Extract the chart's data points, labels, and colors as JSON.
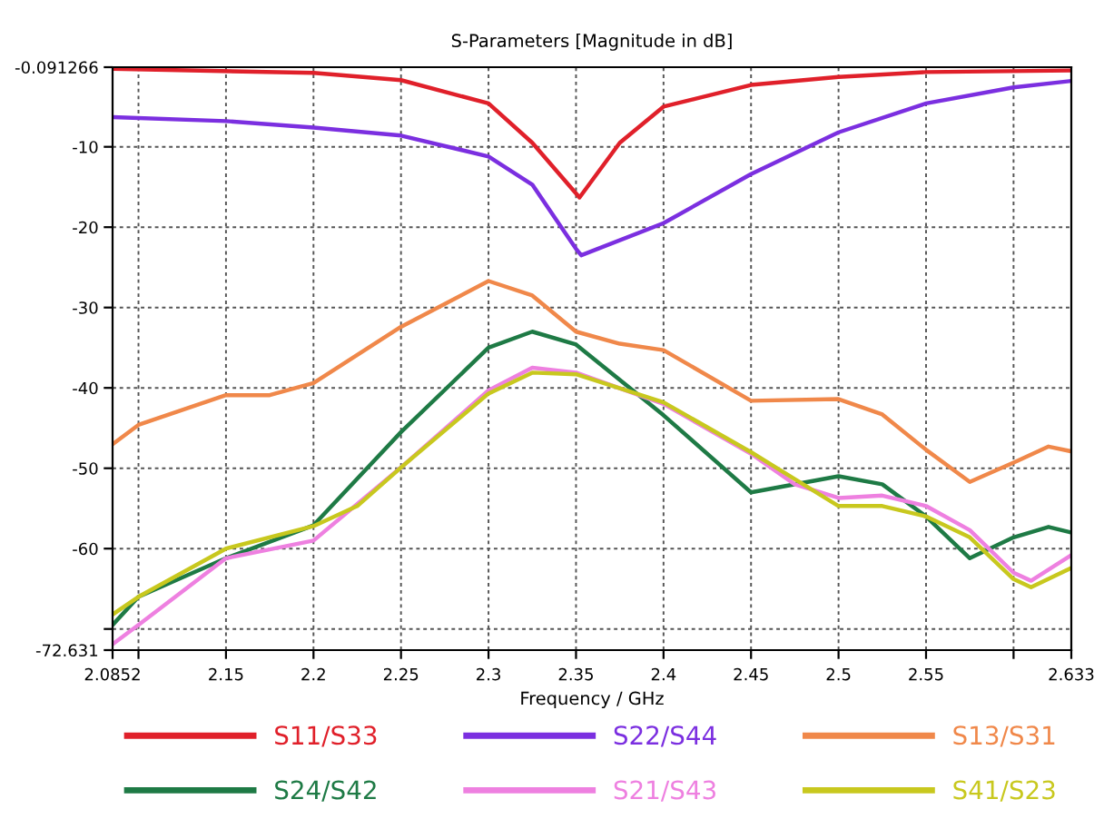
{
  "chart_data": {
    "type": "line",
    "title": "S-Parameters [Magnitude in dB]",
    "xlabel": "Frequency / GHz",
    "xlim": [
      2.0852,
      2.633
    ],
    "xticks": [
      2.0852,
      {
        "value": 2.1,
        "label": null
      },
      2.15,
      2.2,
      2.25,
      2.3,
      2.35,
      2.4,
      2.45,
      2.5,
      2.55,
      {
        "value": 2.6,
        "label": null
      },
      2.633
    ],
    "ylim": [
      -72.631,
      -0.091266
    ],
    "yticks": [
      -0.091266,
      -10,
      -20,
      -30,
      -40,
      -50,
      -60,
      {
        "value": -70,
        "label": null
      },
      -72.631
    ],
    "grid": true,
    "legend": "bottom",
    "line_style": "solid",
    "series": [
      {
        "name": "S11/S33",
        "color": "#e0202a",
        "x": [
          2.0852,
          2.2,
          2.25,
          2.3,
          2.325,
          2.352,
          2.375,
          2.4,
          2.45,
          2.5,
          2.55,
          2.633
        ],
        "values": [
          -0.3,
          -0.8,
          -1.7,
          -4.6,
          -9.5,
          -16.3,
          -9.5,
          -5,
          -2.3,
          -1.3,
          -0.7,
          -0.5
        ]
      },
      {
        "name": "S22/S44",
        "color": "#7b2fe0",
        "x": [
          2.0852,
          2.15,
          2.2,
          2.25,
          2.3,
          2.325,
          2.35,
          2.353,
          2.4,
          2.45,
          2.5,
          2.55,
          2.6,
          2.633
        ],
        "values": [
          -6.3,
          -6.8,
          -7.6,
          -8.6,
          -11.2,
          -14.7,
          -22.7,
          -23.5,
          -19.5,
          -13.4,
          -8.2,
          -4.6,
          -2.6,
          -1.8
        ]
      },
      {
        "name": "S13/S31",
        "color": "#f0884a",
        "x": [
          2.0852,
          2.1,
          2.15,
          2.175,
          2.2,
          2.25,
          2.3,
          2.325,
          2.35,
          2.375,
          2.4,
          2.45,
          2.5,
          2.525,
          2.55,
          2.575,
          2.6,
          2.62,
          2.633
        ],
        "values": [
          -47,
          -44.6,
          -40.9,
          -40.9,
          -39.4,
          -32.4,
          -26.7,
          -28.5,
          -33,
          -34.5,
          -35.3,
          -41.6,
          -41.4,
          -43.3,
          -47.7,
          -51.7,
          -49.3,
          -47.3,
          -47.9
        ]
      },
      {
        "name": "S24/S42",
        "color": "#1e7a45",
        "x": [
          2.0852,
          2.1,
          2.15,
          2.2,
          2.25,
          2.3,
          2.325,
          2.35,
          2.4,
          2.45,
          2.5,
          2.525,
          2.55,
          2.575,
          2.6,
          2.62,
          2.633
        ],
        "values": [
          -69.5,
          -66,
          -61.2,
          -57.1,
          -45.5,
          -35,
          -33,
          -34.6,
          -43.4,
          -53,
          -51,
          -52,
          -56,
          -61.2,
          -58.6,
          -57.3,
          -58
        ]
      },
      {
        "name": "S21/S43",
        "color": "#ee80e0",
        "x": [
          2.0852,
          2.1,
          2.15,
          2.2,
          2.25,
          2.3,
          2.325,
          2.35,
          2.4,
          2.45,
          2.475,
          2.5,
          2.525,
          2.55,
          2.575,
          2.6,
          2.61,
          2.633
        ],
        "values": [
          -71.9,
          -69.5,
          -61.2,
          -59,
          -49.9,
          -40.3,
          -37.5,
          -38.1,
          -42,
          -48.2,
          -52,
          -53.7,
          -53.4,
          -54.7,
          -57.7,
          -63,
          -64,
          -60.8
        ]
      },
      {
        "name": "S41/S23",
        "color": "#c8c81e",
        "x": [
          2.0852,
          2.1,
          2.15,
          2.2,
          2.225,
          2.25,
          2.3,
          2.325,
          2.35,
          2.4,
          2.45,
          2.5,
          2.525,
          2.55,
          2.575,
          2.6,
          2.61,
          2.633
        ],
        "values": [
          -68.2,
          -66,
          -60,
          -57.2,
          -54.7,
          -49.9,
          -40.7,
          -38.1,
          -38.3,
          -41.8,
          -48,
          -54.7,
          -54.7,
          -56,
          -58.6,
          -63.8,
          -64.8,
          -62.4
        ]
      }
    ]
  }
}
